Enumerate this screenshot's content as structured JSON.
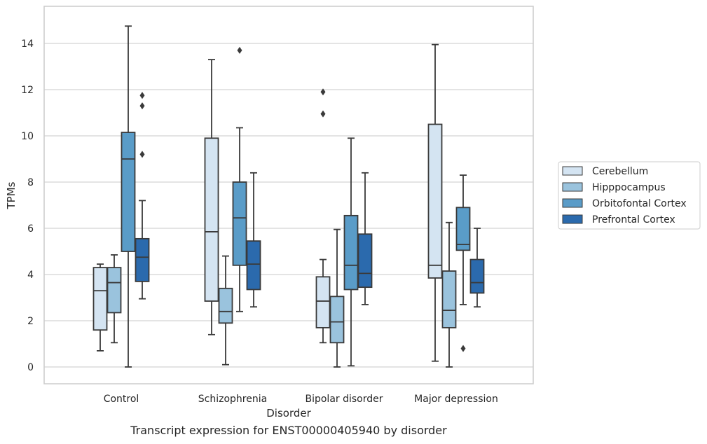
{
  "caption": "Transcript expression for ENST00000405940 by disorder",
  "chart_data": {
    "type": "box",
    "title": "",
    "xlabel": "Disorder",
    "ylabel": "TPMs",
    "ylim": [
      -0.7,
      15.5
    ],
    "yticks": [
      0,
      2,
      4,
      6,
      8,
      10,
      12,
      14
    ],
    "grid": "horizontal",
    "legend_position": "right-center",
    "categories": [
      "Control",
      "Schizophrenia",
      "Bipolar disorder",
      "Major depression"
    ],
    "series": [
      {
        "name": "Cerebellum",
        "color": "#d4e4f2",
        "boxes": [
          {
            "min": 0.7,
            "q1": 1.6,
            "median": 3.3,
            "q3": 4.3,
            "max": 4.45,
            "outliers": []
          },
          {
            "min": 1.4,
            "q1": 2.85,
            "median": 5.85,
            "q3": 9.9,
            "max": 13.3,
            "outliers": []
          },
          {
            "min": 1.05,
            "q1": 1.7,
            "median": 2.85,
            "q3": 3.9,
            "max": 4.65,
            "outliers": [
              10.95,
              11.9
            ]
          },
          {
            "min": 0.25,
            "q1": 3.85,
            "median": 4.4,
            "q3": 10.5,
            "max": 13.95,
            "outliers": []
          }
        ]
      },
      {
        "name": "Hipppocampus",
        "color": "#9ac3dd",
        "boxes": [
          {
            "min": 1.05,
            "q1": 2.35,
            "median": 3.65,
            "q3": 4.3,
            "max": 4.85,
            "outliers": []
          },
          {
            "min": 0.1,
            "q1": 1.9,
            "median": 2.4,
            "q3": 3.4,
            "max": 4.8,
            "outliers": []
          },
          {
            "min": 0.0,
            "q1": 1.05,
            "median": 1.95,
            "q3": 3.05,
            "max": 5.95,
            "outliers": []
          },
          {
            "min": 0.0,
            "q1": 1.7,
            "median": 2.45,
            "q3": 4.15,
            "max": 6.25,
            "outliers": []
          }
        ]
      },
      {
        "name": "Orbitofontal Cortex",
        "color": "#5a9cc8",
        "boxes": [
          {
            "min": 0.0,
            "q1": 5.0,
            "median": 9.0,
            "q3": 10.15,
            "max": 14.75,
            "outliers": []
          },
          {
            "min": 2.4,
            "q1": 4.4,
            "median": 6.45,
            "q3": 8.0,
            "max": 10.35,
            "outliers": [
              13.7
            ]
          },
          {
            "min": 0.05,
            "q1": 3.35,
            "median": 4.4,
            "q3": 6.55,
            "max": 9.9,
            "outliers": []
          },
          {
            "min": 2.7,
            "q1": 5.05,
            "median": 5.3,
            "q3": 6.9,
            "max": 8.3,
            "outliers": [
              0.8
            ]
          }
        ]
      },
      {
        "name": "Prefrontal Cortex",
        "color": "#2b6aad",
        "boxes": [
          {
            "min": 2.95,
            "q1": 3.7,
            "median": 4.75,
            "q3": 5.55,
            "max": 7.2,
            "outliers": [
              9.2,
              11.3,
              11.75
            ]
          },
          {
            "min": 2.6,
            "q1": 3.35,
            "median": 4.45,
            "q3": 5.45,
            "max": 8.4,
            "outliers": []
          },
          {
            "min": 2.7,
            "q1": 3.45,
            "median": 4.05,
            "q3": 5.75,
            "max": 8.4,
            "outliers": []
          },
          {
            "min": 2.6,
            "q1": 3.2,
            "median": 3.65,
            "q3": 4.65,
            "max": 6.0,
            "outliers": []
          }
        ]
      }
    ]
  }
}
